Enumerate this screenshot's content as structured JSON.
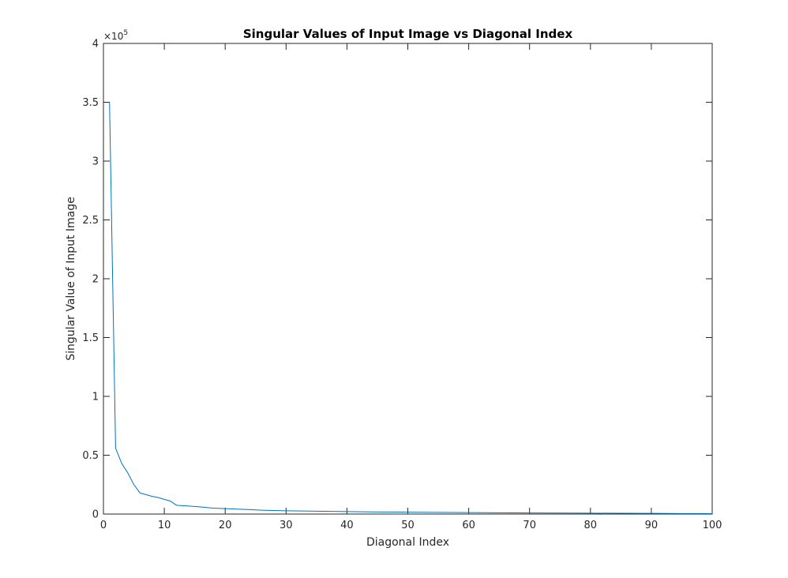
{
  "chart_data": {
    "type": "line",
    "title": "Singular Values of Input Image vs Diagonal Index",
    "xlabel": "Diagonal Index",
    "ylabel": "Singular Value of Input Image",
    "xlim": [
      0,
      100
    ],
    "ylim": [
      0,
      400000
    ],
    "x_ticks": [
      0,
      10,
      20,
      30,
      40,
      50,
      60,
      70,
      80,
      90,
      100
    ],
    "y_ticks": [
      0,
      50000,
      100000,
      150000,
      200000,
      250000,
      300000,
      350000,
      400000
    ],
    "x_tick_labels": [
      "0",
      "10",
      "20",
      "30",
      "40",
      "50",
      "60",
      "70",
      "80",
      "90",
      "100"
    ],
    "y_tick_labels": [
      "0",
      "0.5",
      "1",
      "1.5",
      "2",
      "2.5",
      "3",
      "3.5",
      "4"
    ],
    "y_exponent_label": "×10",
    "y_exponent_power": "5",
    "grid": false,
    "line_color": "#0072bd",
    "series": [
      {
        "x": [
          1,
          2,
          3,
          4,
          5,
          6,
          7,
          8,
          9,
          10,
          11,
          12,
          14,
          16,
          18,
          20,
          22,
          24,
          26,
          28,
          30,
          35,
          40,
          45,
          50,
          55,
          60,
          65,
          70,
          75,
          80,
          85,
          90,
          95,
          100
        ],
        "values": [
          350000,
          56000,
          43000,
          35000,
          25000,
          18000,
          16500,
          15000,
          14000,
          12500,
          11000,
          7500,
          6800,
          6000,
          5000,
          4600,
          4200,
          3800,
          3300,
          3000,
          2800,
          2400,
          2100,
          1800,
          1600,
          1400,
          1250,
          1100,
          950,
          850,
          750,
          650,
          550,
          450,
          350
        ]
      }
    ]
  }
}
